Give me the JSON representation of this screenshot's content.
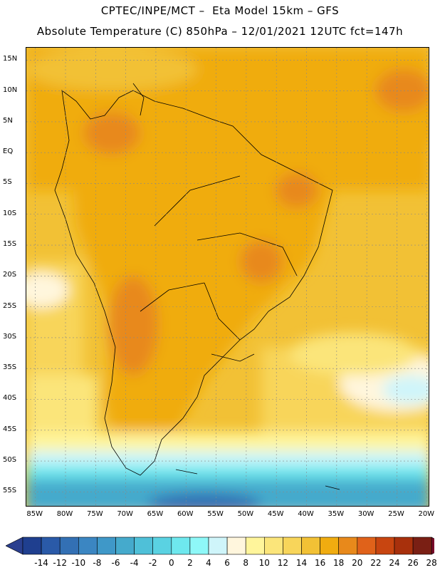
{
  "header": {
    "line1": "CPTEC/INPE/MCT –  Eta Model 15km – GFS",
    "line2": "Absolute Temperature (C) 850hPa – 12/01/2021 12UTC fct=147h"
  },
  "map": {
    "lat_labels": [
      "15N",
      "10N",
      "5N",
      "EQ",
      "5S",
      "10S",
      "15S",
      "20S",
      "25S",
      "30S",
      "35S",
      "40S",
      "45S",
      "50S",
      "55S"
    ],
    "lon_labels": [
      "85W",
      "80W",
      "75W",
      "70W",
      "65W",
      "60W",
      "55W",
      "50W",
      "45W",
      "40W",
      "35W",
      "30W",
      "25W",
      "20W"
    ],
    "lat_range": [
      15,
      -57
    ],
    "lon_range": [
      -85,
      -20
    ]
  },
  "colorbar": {
    "labels": [
      "-14",
      "-12",
      "-10",
      "-8",
      "-6",
      "-4",
      "-2",
      "0",
      "2",
      "4",
      "6",
      "8",
      "10",
      "12",
      "14",
      "16",
      "18",
      "20",
      "22",
      "24",
      "26",
      "28"
    ],
    "colors": [
      "#1f3f8f",
      "#2a5aa8",
      "#3370b4",
      "#3b86c2",
      "#3f98c8",
      "#45aacc",
      "#4fc0d8",
      "#5ad2e2",
      "#6ee8ee",
      "#8ef8f8",
      "#cff5fa",
      "#fff6dd",
      "#fff59b",
      "#fbe57a",
      "#f8d55a",
      "#f2c135",
      "#f0ac10",
      "#e8891b",
      "#e0621a",
      "#c84510",
      "#a8300c",
      "#7a1f14"
    ],
    "low_color": "#2a3f8f",
    "high_color": "#7a0b2a"
  }
}
